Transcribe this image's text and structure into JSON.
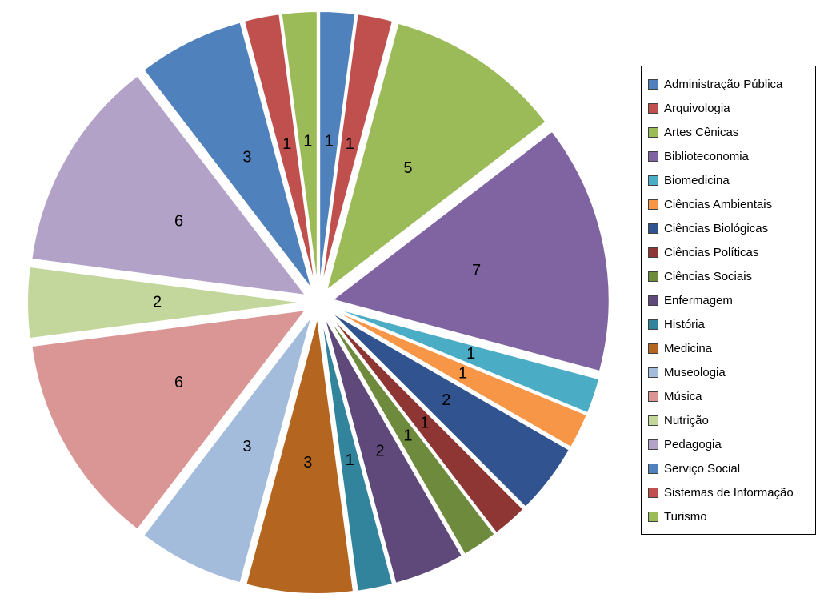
{
  "chart_data": {
    "type": "pie",
    "title": "",
    "exploded": true,
    "start_angle_deg": 0,
    "direction": "clockwise",
    "total": 48,
    "data_labels": "value",
    "legend_position": "right",
    "series": [
      {
        "label": "Administração Pública",
        "value": 1,
        "color": "#4F81BD"
      },
      {
        "label": "Arquivologia",
        "value": 1,
        "color": "#C0504D"
      },
      {
        "label": "Artes Cênicas",
        "value": 5,
        "color": "#9BBB59"
      },
      {
        "label": "Biblioteconomia",
        "value": 7,
        "color": "#8064A2"
      },
      {
        "label": "Biomedicina",
        "value": 1,
        "color": "#4BACC6"
      },
      {
        "label": "Ciências Ambientais",
        "value": 1,
        "color": "#F79646"
      },
      {
        "label": "Ciências Biológicas",
        "value": 2,
        "color": "#31538F"
      },
      {
        "label": "Ciências Políticas",
        "value": 1,
        "color": "#8E3634"
      },
      {
        "label": "Ciências Sociais",
        "value": 1,
        "color": "#6E8B3D"
      },
      {
        "label": "Enfermagem",
        "value": 2,
        "color": "#5F497A"
      },
      {
        "label": "História",
        "value": 1,
        "color": "#31849B"
      },
      {
        "label": "Medicina",
        "value": 3,
        "color": "#B4651F"
      },
      {
        "label": "Museologia",
        "value": 3,
        "color": "#A3BCDC"
      },
      {
        "label": "Música",
        "value": 6,
        "color": "#D99694"
      },
      {
        "label": "Nutrição",
        "value": 2,
        "color": "#C3D69B"
      },
      {
        "label": "Pedagogia",
        "value": 6,
        "color": "#B3A2C7"
      },
      {
        "label": "Serviço Social",
        "value": 3,
        "color": "#4F81BD"
      },
      {
        "label": "Sistemas de Informação",
        "value": 1,
        "color": "#C0504D"
      },
      {
        "label": "Turismo",
        "value": 1,
        "color": "#9BBB59"
      }
    ]
  }
}
